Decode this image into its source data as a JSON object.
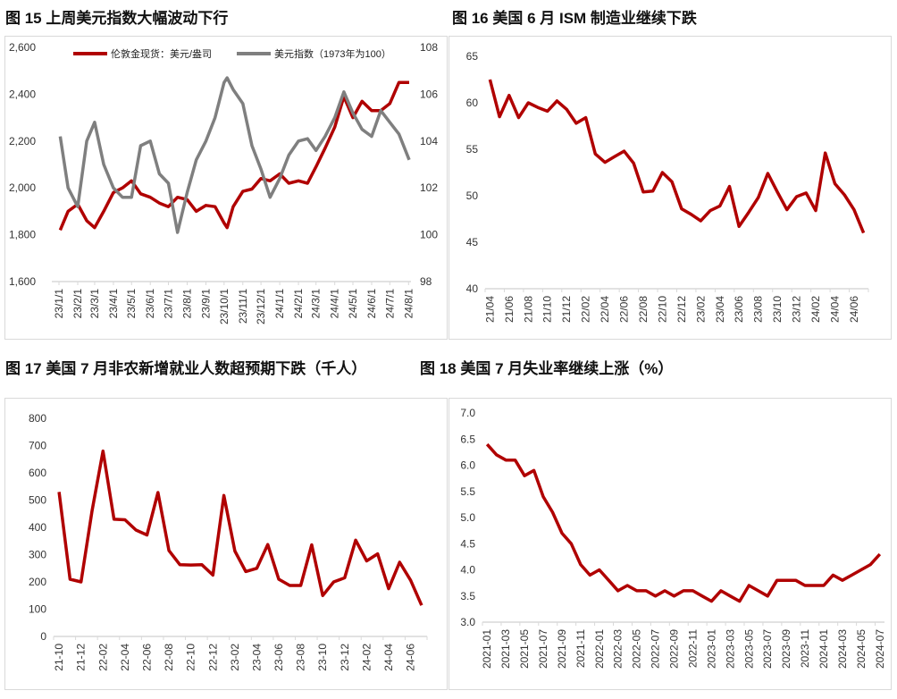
{
  "titles": [
    "图 15 上周美元指数大幅波动下行",
    "图 16 美国 6 月 ISM 制造业继续下跌",
    "图 17 美国 7 月非农新增就业人数超预期下跌（千人）",
    "图 18 美国 7 月失业率继续上涨（%）"
  ],
  "colors": {
    "red": "#b00000",
    "gray": "#7f7f7f",
    "axis": "#d9d9d9"
  },
  "chart_data": [
    {
      "type": "line",
      "title": "图 15 上周美元指数大幅波动下行",
      "xlim": [
        "2023-01-01",
        "2024-08-05"
      ],
      "xtick_labels": [
        "23/1/1",
        "23/2/1",
        "23/3/1",
        "23/4/1",
        "23/5/1",
        "23/6/1",
        "23/7/1",
        "23/8/1",
        "23/9/1",
        "23/10/1",
        "23/11/1",
        "23/12/1",
        "24/1/1",
        "24/2/1",
        "24/3/1",
        "24/4/1",
        "24/5/1",
        "24/6/1",
        "24/7/1",
        "24/8/1"
      ],
      "xtick_dates": [
        "2023-01-01",
        "2023-02-01",
        "2023-03-01",
        "2023-04-01",
        "2023-05-01",
        "2023-06-01",
        "2023-07-01",
        "2023-08-01",
        "2023-09-01",
        "2023-10-01",
        "2023-11-01",
        "2023-12-01",
        "2024-01-01",
        "2024-02-01",
        "2024-03-01",
        "2024-04-01",
        "2024-05-01",
        "2024-06-01",
        "2024-07-01",
        "2024-08-01"
      ],
      "ylim_left": [
        1600,
        2600
      ],
      "yticks_left": [
        "1,600",
        "1,800",
        "2,000",
        "2,200",
        "2,400",
        "2,600"
      ],
      "ylim_right": [
        98,
        108
      ],
      "yticks_right": [
        "98",
        "100",
        "102",
        "104",
        "106",
        "108"
      ],
      "legend_position": "top",
      "x": [
        "2023-01-03",
        "2023-01-16",
        "2023-02-01",
        "2023-02-16",
        "2023-03-01",
        "2023-03-16",
        "2023-04-01",
        "2023-04-16",
        "2023-05-01",
        "2023-05-16",
        "2023-06-01",
        "2023-06-16",
        "2023-07-01",
        "2023-07-16",
        "2023-08-01",
        "2023-08-16",
        "2023-09-01",
        "2023-09-16",
        "2023-10-01",
        "2023-10-06",
        "2023-10-16",
        "2023-11-01",
        "2023-11-16",
        "2023-12-01",
        "2023-12-16",
        "2024-01-01",
        "2024-01-16",
        "2024-02-01",
        "2024-02-16",
        "2024-03-01",
        "2024-03-16",
        "2024-04-01",
        "2024-04-16",
        "2024-05-01",
        "2024-05-16",
        "2024-06-01",
        "2024-06-16",
        "2024-07-01",
        "2024-07-16",
        "2024-08-02"
      ],
      "series": [
        {
          "name": "伦敦金现货：美元/盎司",
          "axis": "left",
          "color": "#b00000",
          "values": [
            1820,
            1900,
            1930,
            1860,
            1830,
            1900,
            1980,
            2000,
            2030,
            1975,
            1960,
            1935,
            1920,
            1960,
            1950,
            1900,
            1925,
            1920,
            1850,
            1830,
            1920,
            1985,
            1995,
            2040,
            2030,
            2060,
            2020,
            2030,
            2020,
            2090,
            2170,
            2260,
            2390,
            2300,
            2370,
            2330,
            2330,
            2360,
            2450,
            2450
          ]
        },
        {
          "name": "美元指数（1973年为100）",
          "axis": "right",
          "color": "#7f7f7f",
          "values": [
            104.2,
            102.0,
            101.2,
            104.0,
            104.8,
            103.0,
            102.0,
            101.6,
            101.6,
            103.8,
            104.0,
            102.6,
            102.2,
            100.1,
            101.8,
            103.2,
            104.0,
            105.0,
            106.5,
            106.7,
            106.2,
            105.6,
            103.8,
            102.8,
            101.6,
            102.4,
            103.4,
            104.0,
            104.1,
            103.6,
            104.2,
            105.0,
            106.1,
            105.2,
            104.5,
            104.2,
            105.3,
            104.8,
            104.3,
            103.2
          ]
        }
      ]
    },
    {
      "type": "line",
      "title": "图 16 美国 6 月 ISM 制造业继续下跌",
      "categories": [
        "21/04",
        "21/05",
        "21/06",
        "21/07",
        "21/08",
        "21/09",
        "21/10",
        "21/11",
        "21/12",
        "22/01",
        "22/02",
        "22/03",
        "22/04",
        "22/05",
        "22/06",
        "22/07",
        "22/08",
        "22/09",
        "22/10",
        "22/11",
        "22/12",
        "23/01",
        "23/02",
        "23/03",
        "23/04",
        "23/05",
        "23/06",
        "23/07",
        "23/08",
        "23/09",
        "23/10",
        "23/11",
        "23/12",
        "24/01",
        "24/02",
        "24/03",
        "24/04",
        "24/05",
        "24/06",
        "24/07"
      ],
      "tick_every": 2,
      "values": [
        62.5,
        58.5,
        60.8,
        58.4,
        60.0,
        59.5,
        59.1,
        60.2,
        59.3,
        57.8,
        58.4,
        54.5,
        53.6,
        54.2,
        54.8,
        53.5,
        50.4,
        50.5,
        52.5,
        51.5,
        48.6,
        48.0,
        47.3,
        48.4,
        48.9,
        51.0,
        46.7,
        48.2,
        49.8,
        52.4,
        50.4,
        48.5,
        49.9,
        50.3,
        48.4,
        54.6,
        51.3,
        50.1,
        48.5,
        46.0
      ],
      "ylim": [
        40,
        65
      ],
      "yticks": [
        "40",
        "45",
        "50",
        "55",
        "60",
        "65"
      ]
    },
    {
      "type": "line",
      "title": "图 17 美国 7 月非农新增就业人数超预期下跌（千人）",
      "categories": [
        "21-10",
        "21-11",
        "21-12",
        "22-01",
        "22-02",
        "22-03",
        "22-04",
        "22-05",
        "22-06",
        "22-07",
        "22-08",
        "22-09",
        "22-10",
        "22-11",
        "22-12",
        "23-01",
        "23-02",
        "23-03",
        "23-04",
        "23-05",
        "23-06",
        "23-07",
        "23-08",
        "23-09",
        "23-10",
        "23-11",
        "23-12",
        "24-01",
        "24-02",
        "24-03",
        "24-04",
        "24-05",
        "24-06",
        "24-07"
      ],
      "tick_every": 2,
      "values": [
        530,
        210,
        200,
        460,
        680,
        430,
        428,
        390,
        372,
        528,
        315,
        263,
        262,
        263,
        225,
        517,
        313,
        238,
        250,
        337,
        210,
        187,
        187,
        336,
        150,
        200,
        215,
        353,
        277,
        303,
        175,
        272,
        206,
        114
      ],
      "ylim": [
        0,
        800
      ],
      "yticks": [
        "0",
        "100",
        "200",
        "300",
        "400",
        "500",
        "600",
        "700",
        "800"
      ]
    },
    {
      "type": "line",
      "title": "图 18 美国 7 月失业率继续上涨（%）",
      "categories": [
        "2021-01",
        "2021-02",
        "2021-03",
        "2021-04",
        "2021-05",
        "2021-06",
        "2021-07",
        "2021-08",
        "2021-09",
        "2021-10",
        "2021-11",
        "2021-12",
        "2022-01",
        "2022-02",
        "2022-03",
        "2022-04",
        "2022-05",
        "2022-06",
        "2022-07",
        "2022-08",
        "2022-09",
        "2022-10",
        "2022-11",
        "2022-12",
        "2023-01",
        "2023-02",
        "2023-03",
        "2023-04",
        "2023-05",
        "2023-06",
        "2023-07",
        "2023-08",
        "2023-09",
        "2023-10",
        "2023-11",
        "2023-12",
        "2024-01",
        "2024-02",
        "2024-03",
        "2024-04",
        "2024-05",
        "2024-06",
        "2024-07"
      ],
      "tick_every": 2,
      "values": [
        6.4,
        6.2,
        6.1,
        6.1,
        5.8,
        5.9,
        5.4,
        5.1,
        4.7,
        4.5,
        4.1,
        3.9,
        4.0,
        3.8,
        3.6,
        3.7,
        3.6,
        3.6,
        3.5,
        3.6,
        3.5,
        3.6,
        3.6,
        3.5,
        3.4,
        3.6,
        3.5,
        3.4,
        3.7,
        3.6,
        3.5,
        3.8,
        3.8,
        3.8,
        3.7,
        3.7,
        3.7,
        3.9,
        3.8,
        3.9,
        4.0,
        4.1,
        4.3
      ],
      "ylim": [
        3.0,
        7.0
      ],
      "yticks": [
        "3.0",
        "3.5",
        "4.0",
        "4.5",
        "5.0",
        "5.5",
        "6.0",
        "6.5",
        "7.0"
      ]
    }
  ]
}
